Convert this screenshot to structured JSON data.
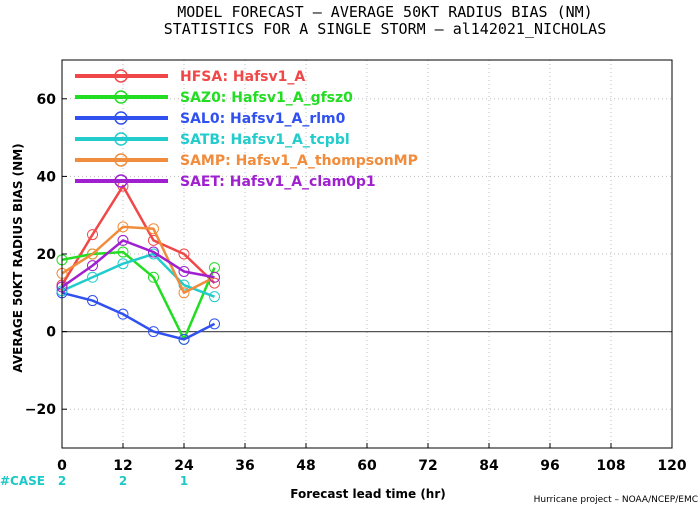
{
  "title_line1": "MODEL FORECAST – AVERAGE 50KT RADIUS BIAS (NM)",
  "title_line2": "STATISTICS FOR A SINGLE STORM – al142021_NICHOLAS",
  "footer": "Hurricane project – NOAA/NCEP/EMC",
  "case_label": "#CASE",
  "cases": [
    {
      "x": 0,
      "count": "2"
    },
    {
      "x": 12,
      "count": "2"
    },
    {
      "x": 24,
      "count": "1"
    }
  ],
  "chart_data": {
    "type": "line",
    "xlabel": "Forecast lead time (hr)",
    "ylabel": "AVERAGE 50KT RADIUS BIAS (NM)",
    "xlim": [
      0,
      120
    ],
    "ylim": [
      -30,
      70
    ],
    "xticks": [
      0,
      12,
      24,
      36,
      48,
      60,
      72,
      84,
      96,
      108,
      120
    ],
    "yticks": [
      -20,
      0,
      20,
      40,
      60
    ],
    "grid": true,
    "legend_position": "top-left",
    "x": [
      0,
      6,
      12,
      18,
      24,
      30
    ],
    "series": [
      {
        "name": "HFSA: Hafsv1_A",
        "color": "#f04848",
        "values": [
          12,
          25,
          37.5,
          23.5,
          20,
          12.5
        ]
      },
      {
        "name": "SAZ0: Hafsv1_A_gfsz0",
        "color": "#22dd22",
        "values": [
          18.5,
          20,
          20.5,
          14,
          -2,
          16.5
        ]
      },
      {
        "name": "SAL0: Hafsv1_A_rlm0",
        "color": "#3050f0",
        "values": [
          10,
          8,
          4.5,
          0,
          -2,
          2
        ]
      },
      {
        "name": "SATB: Hafsv1_A_tcpbl",
        "color": "#22cccc",
        "values": [
          10.5,
          14,
          17.5,
          20,
          12,
          9
        ]
      },
      {
        "name": "SAMP: Hafsv1_A_thompsonMP",
        "color": "#f08c3c",
        "values": [
          15,
          20,
          27,
          26.5,
          10,
          14
        ]
      },
      {
        "name": "SAET: Hafsv1_A_clam0p1",
        "color": "#a020d0",
        "values": [
          11.5,
          17,
          23.5,
          20.5,
          15.5,
          14
        ]
      }
    ]
  }
}
